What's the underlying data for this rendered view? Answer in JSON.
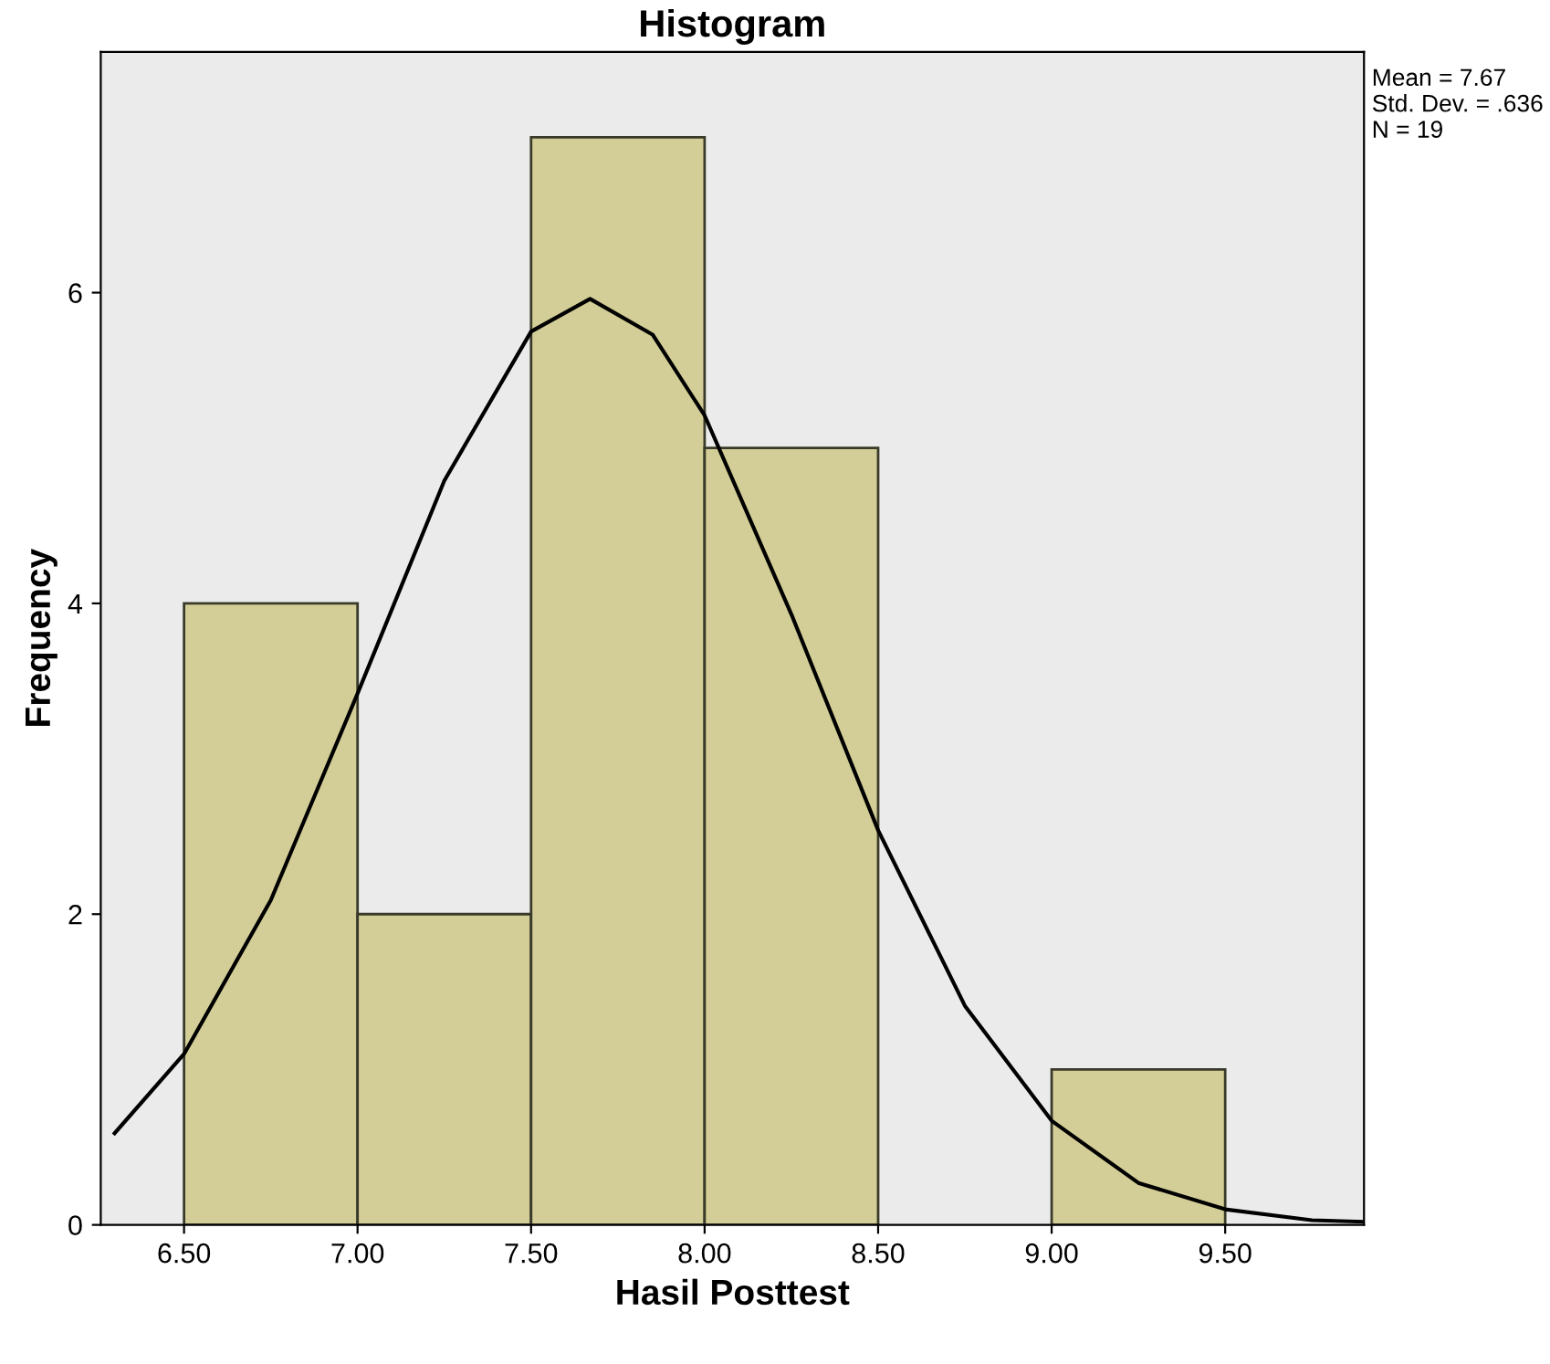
{
  "chart_data": {
    "type": "histogram",
    "title": "Histogram",
    "xlabel": "Hasil Posttest",
    "ylabel": "Frequency",
    "bins": [
      6.5,
      7.0,
      7.5,
      8.0,
      8.5,
      9.0,
      9.5
    ],
    "values": [
      4,
      2,
      7,
      5,
      0,
      1
    ],
    "color": "#d3ce97",
    "series": [
      {
        "type": "line",
        "color": "#000000",
        "x": [
          6.3,
          6.5,
          6.75,
          7.0,
          7.25,
          7.5,
          7.67,
          7.85,
          8.0,
          8.25,
          8.5,
          8.75,
          9.0,
          9.25,
          9.5,
          9.75,
          9.9
        ],
        "values": [
          0.59,
          1.1,
          2.09,
          3.42,
          4.79,
          5.75,
          5.96,
          5.73,
          5.21,
          3.93,
          2.54,
          1.41,
          0.67,
          0.27,
          0.1,
          0.03,
          0.02
        ]
      }
    ],
    "xlim": [
      6.26,
      9.9
    ],
    "ylim": [
      0,
      7.55
    ],
    "xticks": [
      {
        "value": 6.5,
        "label": "6.50"
      },
      {
        "value": 7.0,
        "label": "7.00"
      },
      {
        "value": 7.5,
        "label": "7.50"
      },
      {
        "value": 8.0,
        "label": "8.00"
      },
      {
        "value": 8.5,
        "label": "8.50"
      },
      {
        "value": 9.0,
        "label": "9.00"
      },
      {
        "value": 9.5,
        "label": "9.50"
      }
    ],
    "yticks": [
      0,
      2,
      4,
      6
    ],
    "grid": false,
    "legend": false,
    "annotations": [
      "Mean = 7.67\nStd. Dev. = .636\nN = 19"
    ]
  }
}
